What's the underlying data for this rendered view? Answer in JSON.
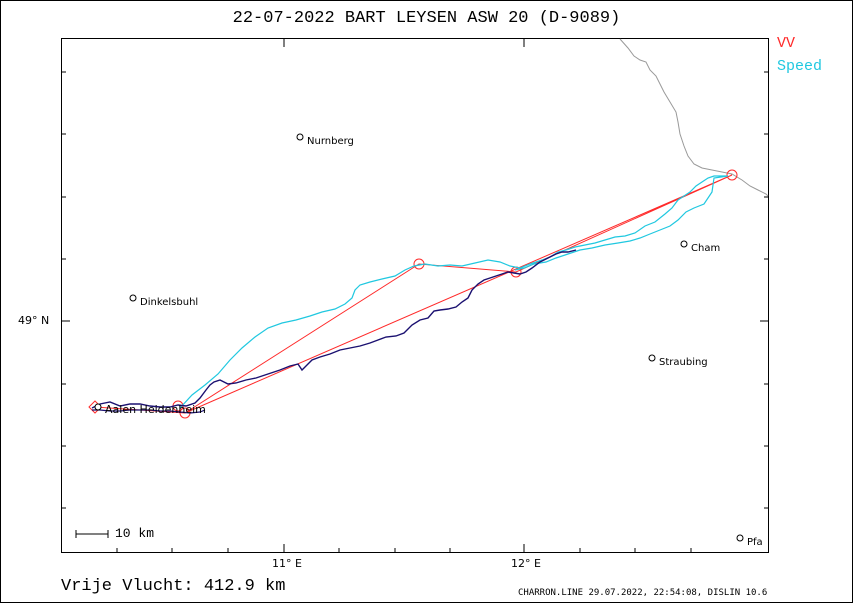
{
  "header": {
    "title": "22-07-2022   BART LEYSEN   ASW 20 (D-9089)"
  },
  "legend": {
    "vv_label": "VV",
    "vv_color": "#ff2a2a",
    "speed_label": "Speed",
    "speed_color": "#20c8e0"
  },
  "axes": {
    "lat_label": "49° N",
    "lon_labels": [
      "11° E",
      "12° E"
    ]
  },
  "scale_bar": {
    "label": "10 km"
  },
  "places": [
    {
      "name": "Nurnberg",
      "icon": "town-circle-icon"
    },
    {
      "name": "Dinkelsbuhl",
      "icon": "town-circle-icon"
    },
    {
      "name": "Cham",
      "icon": "town-circle-icon"
    },
    {
      "name": "Straubing",
      "icon": "town-circle-icon"
    },
    {
      "name": "Aalen Heidenheim",
      "icon": "airfield-icon"
    },
    {
      "name": "Pfa",
      "icon": "town-circle-icon"
    }
  ],
  "footer": {
    "distance": "Vrije Vlucht:  412.9 km",
    "credit": "CHARRON.LINE 29.07.2022, 22:54:08, DISLIN 10.6"
  },
  "colors": {
    "track_dark": "#1a1070",
    "track_light": "#20c8e0",
    "task_line": "#ff2a2a",
    "border": "#999999"
  }
}
